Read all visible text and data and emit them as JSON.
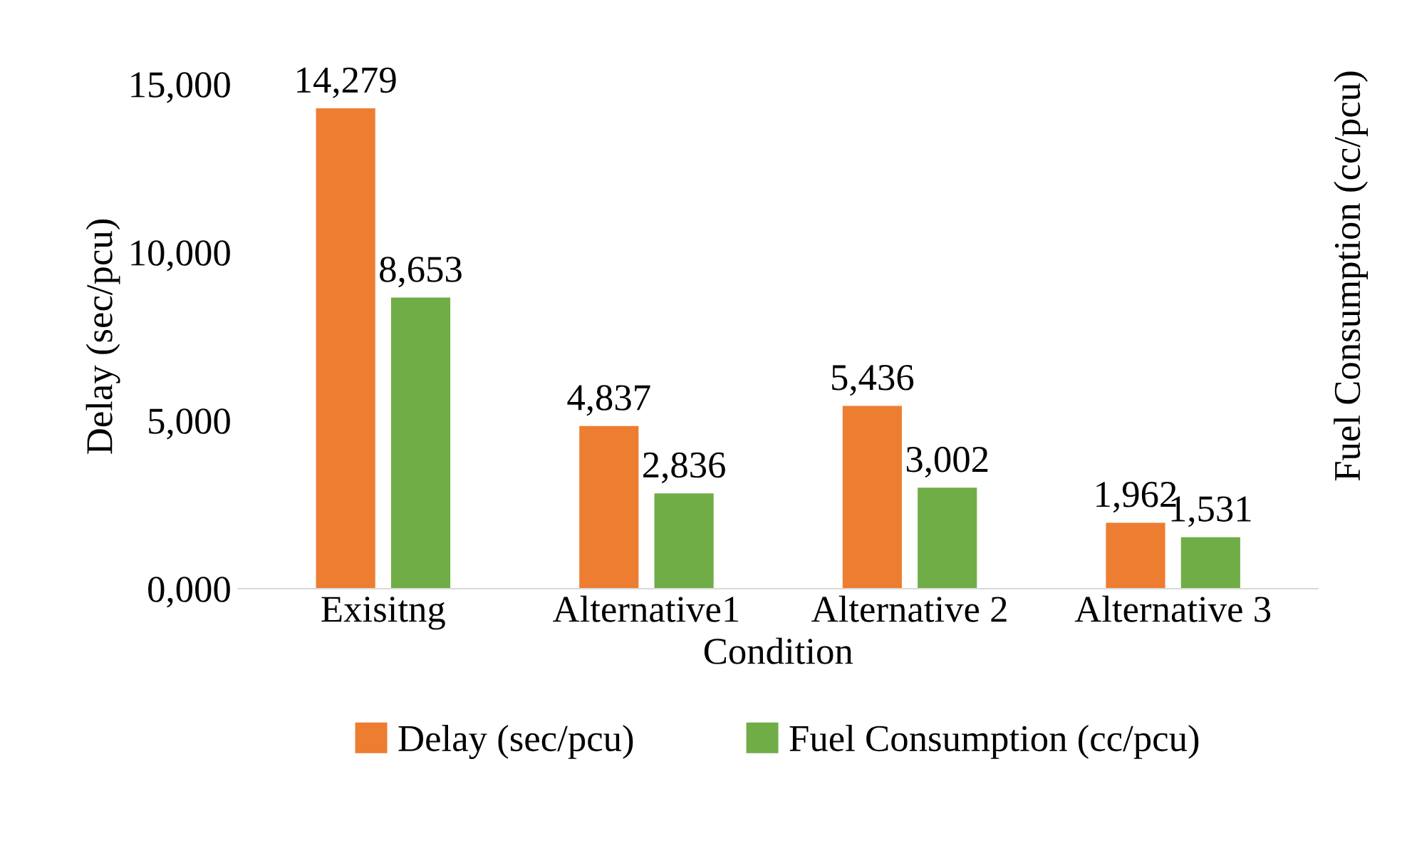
{
  "chart_data": {
    "type": "bar",
    "xlabel": "Condition",
    "ylabel": "Delay (sec/pcu)",
    "y2label": "Fuel Consumption (cc/pcu)",
    "categories": [
      "Exisitng",
      "Alternative1",
      "Alternative 2",
      "Alternative 3"
    ],
    "series": [
      {
        "name": "Delay (sec/pcu)",
        "color": "#ed7d31",
        "values": [
          14279,
          4837,
          5436,
          1962
        ],
        "value_labels": [
          "14,279",
          "4,837",
          "5,436",
          "1,962"
        ]
      },
      {
        "name": "Fuel Consumption (cc/pcu)",
        "color": "#70ad47",
        "values": [
          8653,
          2836,
          3002,
          1531
        ],
        "value_labels": [
          "8,653",
          "2,836",
          "3,002",
          "1,531"
        ]
      }
    ],
    "ylim": [
      0,
      15000
    ],
    "yticks": [
      {
        "value": 0,
        "label": "0,000"
      },
      {
        "value": 5000,
        "label": "5,000"
      },
      {
        "value": 10000,
        "label": "10,000"
      },
      {
        "value": 15000,
        "label": "15,000"
      }
    ],
    "grid": false,
    "legend": "bottom"
  }
}
